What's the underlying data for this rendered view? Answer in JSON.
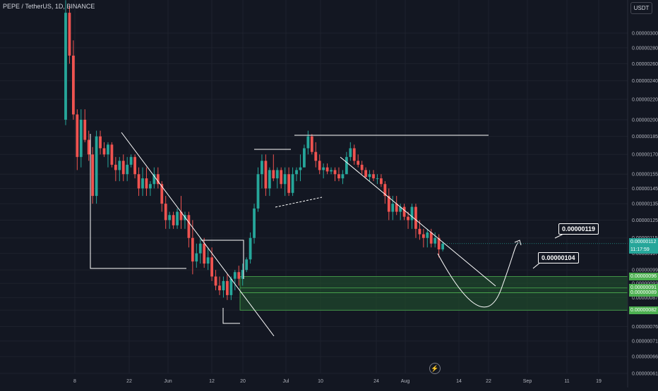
{
  "header": {
    "title": "PEPE / TetherUS, 1D, BINANCE",
    "currency": "USDT"
  },
  "colors": {
    "background": "#131722",
    "up": "#26a69a",
    "down": "#ef5350",
    "grid": "#1e222d",
    "zone_fill": "#1f4a2c",
    "zone_border": "#4caf50",
    "drawing": "#ffffff",
    "last_price": "#26a69a"
  },
  "chart_data": {
    "type": "candlestick",
    "title": "PEPE / TetherUS, 1D, BINANCE",
    "y_scale": "log",
    "ylim": [
      5.8e-07,
      3.45e-06
    ],
    "y_ticks": [
      "0.00000300",
      "0.00000280",
      "0.00000260",
      "0.00000240",
      "0.00000220",
      "0.00000200",
      "0.00000185",
      "0.00000170",
      "0.00000155",
      "0.00000145",
      "0.00000135",
      "0.00000125",
      "0.00000115",
      "0.00000107",
      "0.00000099",
      "0.00000093",
      "0.00000087",
      "0.00000082",
      "0.00000076",
      "0.00000071",
      "0.00000066",
      "0.00000061"
    ],
    "x_ticks": [
      "8",
      "22",
      "Jun",
      "12",
      "20",
      "Jul",
      "10",
      "24",
      "Aug",
      "14",
      "22",
      "Sep",
      "11",
      "19"
    ],
    "grid": true,
    "series": [
      {
        "type": "candles",
        "columns": [
          "open",
          "high",
          "low",
          "close"
        ],
        "data": [
          [
            2e-06,
            3.5e-06,
            1.95e-06,
            3.3e-06
          ],
          [
            3.3e-06,
            3.4e-06,
            2.6e-06,
            2.7e-06
          ],
          [
            2.7e-06,
            2.9e-06,
            2e-06,
            2.05e-06
          ],
          [
            2.05e-06,
            2.1e-06,
            1.58e-06,
            1.68e-06
          ],
          [
            1.68e-06,
            2.1e-06,
            1.6e-06,
            2e-06
          ],
          [
            2e-06,
            2.1e-06,
            1.8e-06,
            1.82e-06
          ],
          [
            1.82e-06,
            1.9e-06,
            1.65e-06,
            1.7e-06
          ],
          [
            1.7e-06,
            1.76e-06,
            1.35e-06,
            1.4e-06
          ],
          [
            1.4e-06,
            1.9e-06,
            1.35e-06,
            1.85e-06
          ],
          [
            1.85e-06,
            1.9e-06,
            1.7e-06,
            1.75e-06
          ],
          [
            1.75e-06,
            1.8e-06,
            1.68e-06,
            1.7e-06
          ],
          [
            1.7e-06,
            1.8e-06,
            1.6e-06,
            1.78e-06
          ],
          [
            1.78e-06,
            1.8e-06,
            1.6e-06,
            1.62e-06
          ],
          [
            1.62e-06,
            1.68e-06,
            1.5e-06,
            1.58e-06
          ],
          [
            1.58e-06,
            1.68e-06,
            1.5e-06,
            1.65e-06
          ],
          [
            1.65e-06,
            1.7e-06,
            1.5e-06,
            1.55e-06
          ],
          [
            1.55e-06,
            1.68e-06,
            1.5e-06,
            1.62e-06
          ],
          [
            1.62e-06,
            1.7e-06,
            1.6e-06,
            1.68e-06
          ],
          [
            1.68e-06,
            1.7e-06,
            1.52e-06,
            1.55e-06
          ],
          [
            1.55e-06,
            1.6e-06,
            1.4e-06,
            1.45e-06
          ],
          [
            1.45e-06,
            1.6e-06,
            1.4e-06,
            1.52e-06
          ],
          [
            1.52e-06,
            1.6e-06,
            1.4e-06,
            1.45e-06
          ],
          [
            1.45e-06,
            1.5e-06,
            1.4e-06,
            1.48e-06
          ],
          [
            1.48e-06,
            1.6e-06,
            1.45e-06,
            1.55e-06
          ],
          [
            1.55e-06,
            1.6e-06,
            1.45e-06,
            1.48e-06
          ],
          [
            1.48e-06,
            1.5e-06,
            1.3e-06,
            1.35e-06
          ],
          [
            1.35e-06,
            1.4e-06,
            1.2e-06,
            1.25e-06
          ],
          [
            1.25e-06,
            1.3e-06,
            1.2e-06,
            1.28e-06
          ],
          [
            1.28e-06,
            1.3e-06,
            1.2e-06,
            1.22e-06
          ],
          [
            1.22e-06,
            1.32e-06,
            1.2e-06,
            1.3e-06
          ],
          [
            1.3e-06,
            1.4e-06,
            1.2e-06,
            1.25e-06
          ],
          [
            1.25e-06,
            1.3e-06,
            1.2e-06,
            1.28e-06
          ],
          [
            1.28e-06,
            1.3e-06,
            1.1e-06,
            1.15e-06
          ],
          [
            1.15e-06,
            1.25e-06,
            9.7e-07,
            1.03e-06
          ],
          [
            1.03e-06,
            1.12e-06,
            1e-06,
            1.07e-06
          ],
          [
            1.07e-06,
            1.15e-06,
            1.02e-06,
            1.12e-06
          ],
          [
            1.12e-06,
            1.15e-06,
            1e-06,
            1.02e-06
          ],
          [
            1.02e-06,
            1.1e-06,
            9.9e-07,
            1.05e-06
          ],
          [
            1.05e-06,
            1.1e-06,
            9.4e-07,
            9.6e-07
          ],
          [
            9.6e-07,
            9.9e-07,
            9e-07,
            9.2e-07
          ],
          [
            9.2e-07,
            9.6e-07,
            8.8e-07,
            9e-07
          ],
          [
            9e-07,
            9.6e-07,
            8.7e-07,
            9.4e-07
          ],
          [
            9.4e-07,
            9.7e-07,
            8.6e-07,
            8.8e-07
          ],
          [
            8.8e-07,
            9.6e-07,
            8.6e-07,
            9.5e-07
          ],
          [
            9.5e-07,
            9.9e-07,
            9e-07,
            9.8e-07
          ],
          [
            9.8e-07,
            1.01e-06,
            9.2e-07,
            9.5e-07
          ],
          [
            9.5e-07,
            1.02e-06,
            9.2e-07,
            9.9e-07
          ],
          [
            9.9e-07,
            1.05e-06,
            9.8e-07,
            1.04e-06
          ],
          [
            1.04e-06,
            1.18e-06,
            1.02e-06,
            1.15e-06
          ],
          [
            1.15e-06,
            1.35e-06,
            1.12e-06,
            1.32e-06
          ],
          [
            1.32e-06,
            1.6e-06,
            1.3e-06,
            1.55e-06
          ],
          [
            1.55e-06,
            1.7e-06,
            1.45e-06,
            1.65e-06
          ],
          [
            1.65e-06,
            1.7e-06,
            1.4e-06,
            1.45e-06
          ],
          [
            1.45e-06,
            1.6e-06,
            1.4e-06,
            1.58e-06
          ],
          [
            1.58e-06,
            1.7e-06,
            1.5e-06,
            1.52e-06
          ],
          [
            1.52e-06,
            1.6e-06,
            1.45e-06,
            1.58e-06
          ],
          [
            1.58e-06,
            1.6e-06,
            1.45e-06,
            1.48e-06
          ],
          [
            1.48e-06,
            1.6e-06,
            1.4e-06,
            1.55e-06
          ],
          [
            1.55e-06,
            1.6e-06,
            1.4e-06,
            1.42e-06
          ],
          [
            1.42e-06,
            1.6e-06,
            1.4e-06,
            1.55e-06
          ],
          [
            1.55e-06,
            1.6e-06,
            1.5e-06,
            1.58e-06
          ],
          [
            1.58e-06,
            1.7e-06,
            1.5e-06,
            1.6e-06
          ],
          [
            1.6e-06,
            1.78e-06,
            1.6e-06,
            1.75e-06
          ],
          [
            1.75e-06,
            1.9e-06,
            1.7e-06,
            1.85e-06
          ],
          [
            1.85e-06,
            1.87e-06,
            1.7e-06,
            1.72e-06
          ],
          [
            1.72e-06,
            1.8e-06,
            1.6e-06,
            1.65e-06
          ],
          [
            1.65e-06,
            1.7e-06,
            1.55e-06,
            1.58e-06
          ],
          [
            1.58e-06,
            1.63e-06,
            1.52e-06,
            1.6e-06
          ],
          [
            1.6e-06,
            1.63e-06,
            1.55e-06,
            1.57e-06
          ],
          [
            1.57e-06,
            1.6e-06,
            1.55e-06,
            1.58e-06
          ],
          [
            1.58e-06,
            1.6e-06,
            1.5e-06,
            1.55e-06
          ],
          [
            1.55e-06,
            1.6e-06,
            1.5e-06,
            1.52e-06
          ],
          [
            1.52e-06,
            1.58e-06,
            1.48e-06,
            1.55e-06
          ],
          [
            1.55e-06,
            1.72e-06,
            1.55e-06,
            1.68e-06
          ],
          [
            1.68e-06,
            1.8e-06,
            1.65e-06,
            1.75e-06
          ],
          [
            1.75e-06,
            1.78e-06,
            1.62e-06,
            1.65e-06
          ],
          [
            1.65e-06,
            1.7e-06,
            1.6e-06,
            1.62e-06
          ],
          [
            1.62e-06,
            1.65e-06,
            1.55e-06,
            1.58e-06
          ],
          [
            1.58e-06,
            1.6e-06,
            1.52e-06,
            1.53e-06
          ],
          [
            1.53e-06,
            1.58e-06,
            1.5e-06,
            1.55e-06
          ],
          [
            1.55e-06,
            1.58e-06,
            1.5e-06,
            1.52e-06
          ],
          [
            1.52e-06,
            1.55e-06,
            1.48e-06,
            1.52e-06
          ],
          [
            1.52e-06,
            1.55e-06,
            1.46e-06,
            1.48e-06
          ],
          [
            1.48e-06,
            1.5e-06,
            1.35e-06,
            1.4e-06
          ],
          [
            1.4e-06,
            1.45e-06,
            1.25e-06,
            1.3e-06
          ],
          [
            1.3e-06,
            1.4e-06,
            1.25e-06,
            1.35e-06
          ],
          [
            1.35e-06,
            1.4e-06,
            1.28e-06,
            1.3e-06
          ],
          [
            1.3e-06,
            1.35e-06,
            1.25e-06,
            1.33e-06
          ],
          [
            1.33e-06,
            1.35e-06,
            1.25e-06,
            1.27e-06
          ],
          [
            1.27e-06,
            1.3e-06,
            1.2e-06,
            1.25e-06
          ],
          [
            1.25e-06,
            1.35e-06,
            1.2e-06,
            1.33e-06
          ],
          [
            1.33e-06,
            1.35e-06,
            1.15e-06,
            1.2e-06
          ],
          [
            1.2e-06,
            1.25e-06,
            1.14e-06,
            1.17e-06
          ],
          [
            1.17e-06,
            1.2e-06,
            1.1e-06,
            1.15e-06
          ],
          [
            1.15e-06,
            1.2e-06,
            1.1e-06,
            1.18e-06
          ],
          [
            1.18e-06,
            1.2e-06,
            1.1e-06,
            1.12e-06
          ],
          [
            1.12e-06,
            1.18e-06,
            1.1e-06,
            1.15e-06
          ],
          [
            1.15e-06,
            1.17e-06,
            1.05e-06,
            1.09e-06
          ],
          [
            1.09e-06,
            1.13e-06,
            1.08e-06,
            1.12e-06
          ]
        ]
      }
    ],
    "support_zone": {
      "from": 8.2e-07,
      "to": 9.6e-07,
      "inner_lines": [
        9.1e-07,
        8.9e-07
      ]
    },
    "price_labels": [
      {
        "text": "0.00000112",
        "sub": "11:17:59",
        "value": 1.12e-06,
        "color": "#26a69a"
      },
      {
        "text": "0.00000096",
        "value": 9.6e-07,
        "color": "#4caf50"
      },
      {
        "text": "0.00000091",
        "value": 9.1e-07,
        "color": "#4caf50"
      },
      {
        "text": "0.00000089",
        "value": 8.9e-07,
        "color": "#4caf50"
      },
      {
        "text": "0.00000082",
        "value": 8.2e-07,
        "color": "#4caf50"
      }
    ],
    "annotations": [
      {
        "text": "0.00000119",
        "value": 1.19e-06
      },
      {
        "text": "0.00000104",
        "value": 1.04e-06
      }
    ]
  }
}
